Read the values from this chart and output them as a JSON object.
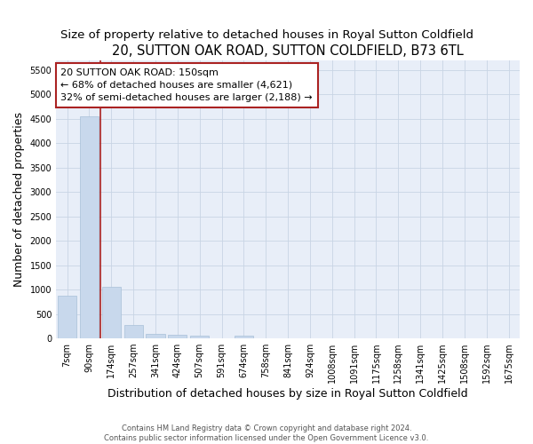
{
  "title": "20, SUTTON OAK ROAD, SUTTON COLDFIELD, B73 6TL",
  "subtitle": "Size of property relative to detached houses in Royal Sutton Coldfield",
  "xlabel": "Distribution of detached houses by size in Royal Sutton Coldfield",
  "ylabel": "Number of detached properties",
  "footer_line1": "Contains HM Land Registry data © Crown copyright and database right 2024.",
  "footer_line2": "Contains public sector information licensed under the Open Government Licence v3.0.",
  "annotation_line1": "20 SUTTON OAK ROAD: 150sqm",
  "annotation_line2": "← 68% of detached houses are smaller (4,621)",
  "annotation_line3": "32% of semi-detached houses are larger (2,188) →",
  "bar_color": "#c8d8ec",
  "bar_edge_color": "#a8c0d8",
  "vline_color": "#aa2222",
  "vline_x_index": 1.5,
  "categories": [
    "7sqm",
    "90sqm",
    "174sqm",
    "257sqm",
    "341sqm",
    "424sqm",
    "507sqm",
    "591sqm",
    "674sqm",
    "758sqm",
    "841sqm",
    "924sqm",
    "1008sqm",
    "1091sqm",
    "1175sqm",
    "1258sqm",
    "1341sqm",
    "1425sqm",
    "1508sqm",
    "1592sqm",
    "1675sqm"
  ],
  "values": [
    880,
    4550,
    1060,
    280,
    95,
    70,
    60,
    0,
    60,
    0,
    0,
    0,
    0,
    0,
    0,
    0,
    0,
    0,
    0,
    0,
    0
  ],
  "ylim": [
    0,
    5700
  ],
  "yticks": [
    0,
    500,
    1000,
    1500,
    2000,
    2500,
    3000,
    3500,
    4000,
    4500,
    5000,
    5500
  ],
  "grid_color": "#c8d4e4",
  "bg_color": "#e8eef8",
  "title_fontsize": 10.5,
  "subtitle_fontsize": 9.5,
  "annotation_fontsize": 8,
  "tick_fontsize": 7,
  "label_fontsize": 9,
  "footer_fontsize": 6
}
